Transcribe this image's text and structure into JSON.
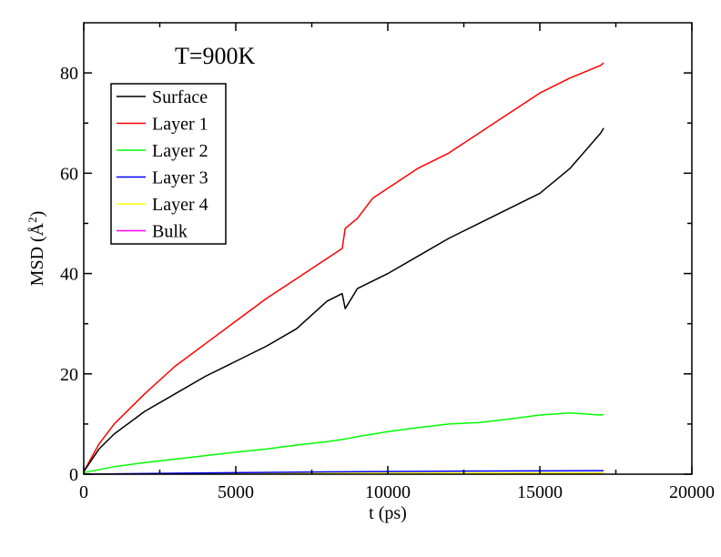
{
  "chart_data": {
    "type": "line",
    "annotation": "T=900K",
    "xlabel": "t (ps)",
    "ylabel": "MSD (Å²)",
    "ylabel_main": "MSD (",
    "ylabel_unit": "Å",
    "ylabel_exp": "2",
    "ylabel_close": ")",
    "xlim": [
      0,
      20000
    ],
    "ylim": [
      0,
      90
    ],
    "xticks": [
      "0",
      "5000",
      "10000",
      "15000",
      "20000"
    ],
    "yticks": [
      "0",
      "20",
      "40",
      "60",
      "80"
    ],
    "legend_position": "top-left",
    "grid": false,
    "series": [
      {
        "name": "Surface",
        "color": "#000000",
        "x": [
          0,
          500,
          1000,
          2000,
          3000,
          4000,
          5000,
          6000,
          7000,
          8000,
          8500,
          8600,
          9000,
          10000,
          11000,
          12000,
          13000,
          14000,
          15000,
          16000,
          17000,
          17100
        ],
        "y": [
          0.5,
          5,
          8,
          12.5,
          16,
          19.5,
          22.5,
          25.5,
          29,
          34.5,
          36,
          33,
          37,
          40,
          43.5,
          47,
          50,
          53,
          56,
          61,
          68,
          69
        ]
      },
      {
        "name": "Layer 1",
        "color": "#ff0000",
        "x": [
          0,
          500,
          1000,
          2000,
          3000,
          4000,
          5000,
          6000,
          7000,
          8000,
          8500,
          8600,
          9000,
          9500,
          10000,
          11000,
          12000,
          13000,
          14000,
          15000,
          16000,
          17000,
          17100
        ],
        "y": [
          0.5,
          6,
          10,
          16,
          21.5,
          26,
          30.5,
          35,
          39,
          43,
          45,
          49,
          51,
          55,
          57,
          61,
          64,
          68,
          72,
          76,
          79,
          81.5,
          82
        ]
      },
      {
        "name": "Layer 2",
        "color": "#00ff00",
        "x": [
          0,
          1000,
          2000,
          3000,
          4000,
          5000,
          6000,
          7000,
          8000,
          8600,
          9000,
          10000,
          11000,
          12000,
          13000,
          14000,
          15000,
          16000,
          17000,
          17100
        ],
        "y": [
          0.3,
          1.5,
          2.3,
          3.0,
          3.7,
          4.4,
          5.0,
          5.8,
          6.5,
          7.0,
          7.5,
          8.5,
          9.3,
          10.0,
          10.3,
          11.0,
          11.8,
          12.2,
          11.8,
          11.9
        ]
      },
      {
        "name": "Layer 3",
        "color": "#0000ff",
        "x": [
          0,
          4000,
          8000,
          12000,
          17100
        ],
        "y": [
          0,
          0.25,
          0.45,
          0.6,
          0.7
        ]
      },
      {
        "name": "Layer 4",
        "color": "#ffff00",
        "x": [
          0,
          4000,
          8000,
          12000,
          17100
        ],
        "y": [
          0,
          0.1,
          0.18,
          0.22,
          0.25
        ]
      },
      {
        "name": "Bulk",
        "color": "#ff00ff",
        "x": [
          0,
          4000,
          8000,
          12000,
          17100
        ],
        "y": [
          0,
          0.05,
          0.08,
          0.1,
          0.12
        ]
      }
    ]
  }
}
